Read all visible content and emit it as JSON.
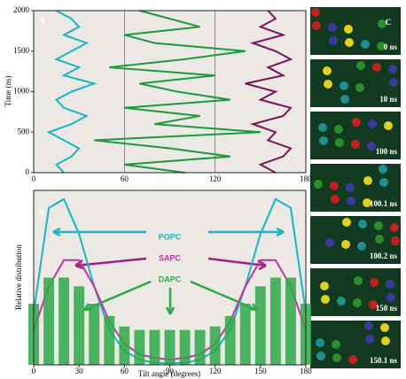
{
  "chart_data": [
    {
      "type": "trace",
      "panel_label": "A",
      "ylabel": "Time (ns)",
      "y": [
        0,
        100,
        200,
        300,
        400,
        500,
        600,
        700,
        800,
        900,
        1000,
        1100,
        1200,
        1300,
        1400,
        1500,
        1600,
        1700,
        1800,
        1900,
        2000
      ],
      "xlim": [
        0,
        180
      ],
      "xticks": [
        0,
        60,
        120,
        180
      ],
      "ylim": [
        0,
        2000
      ],
      "yticks": [
        0,
        500,
        1000,
        1500,
        2000
      ],
      "series": [
        {
          "name": "POPC",
          "color": "#19b5c4",
          "values": [
            20,
            15,
            25,
            30,
            20,
            10,
            25,
            35,
            20,
            15,
            25,
            40,
            20,
            30,
            15,
            25,
            35,
            20,
            30,
            25,
            15
          ]
        },
        {
          "name": "SAPC",
          "color": "#7a1458",
          "values": [
            160,
            150,
            165,
            170,
            155,
            160,
            145,
            165,
            170,
            150,
            160,
            140,
            165,
            155,
            170,
            160,
            145,
            165,
            150,
            160,
            155
          ]
        },
        {
          "name": "DAPC",
          "color": "#1e9a3c",
          "values": [
            100,
            60,
            130,
            90,
            40,
            150,
            80,
            110,
            60,
            130,
            95,
            70,
            120,
            50,
            100,
            140,
            80,
            60,
            110,
            90,
            70
          ]
        }
      ]
    },
    {
      "type": "line",
      "panel_label": "B",
      "xlabel": "Tilt angle (degrees)",
      "ylabel": "Relative distribution",
      "x": [
        0,
        10,
        20,
        30,
        40,
        50,
        60,
        70,
        80,
        90,
        100,
        110,
        120,
        130,
        140,
        150,
        160,
        170,
        180
      ],
      "xlim": [
        0,
        180
      ],
      "xticks": [
        0,
        30,
        60,
        90,
        120,
        150,
        180
      ],
      "ylim": [
        0,
        1
      ],
      "series": [
        {
          "name": "POPC",
          "color": "#19b5c4",
          "kind": "line",
          "values": [
            0.3,
            0.9,
            0.95,
            0.75,
            0.45,
            0.2,
            0.08,
            0.03,
            0.01,
            0.01,
            0.01,
            0.03,
            0.08,
            0.2,
            0.45,
            0.75,
            0.95,
            0.9,
            0.3
          ]
        },
        {
          "name": "SAPC",
          "color": "#c0369a",
          "kind": "line",
          "values": [
            0.2,
            0.45,
            0.6,
            0.6,
            0.45,
            0.25,
            0.12,
            0.06,
            0.04,
            0.03,
            0.04,
            0.06,
            0.12,
            0.25,
            0.45,
            0.6,
            0.6,
            0.45,
            0.2
          ]
        },
        {
          "name": "DAPC",
          "color": "#2ea84a",
          "kind": "bar",
          "values": [
            0.35,
            0.5,
            0.5,
            0.45,
            0.35,
            0.28,
            0.22,
            0.2,
            0.2,
            0.2,
            0.2,
            0.2,
            0.22,
            0.28,
            0.35,
            0.45,
            0.5,
            0.5,
            0.35
          ]
        }
      ]
    }
  ],
  "panel_c": {
    "label": "C",
    "frames": [
      "0 ns",
      "10 ns",
      "100 ns",
      "100.1 ns",
      "100.2 ns",
      "150 ns",
      "150.1 ns"
    ]
  }
}
